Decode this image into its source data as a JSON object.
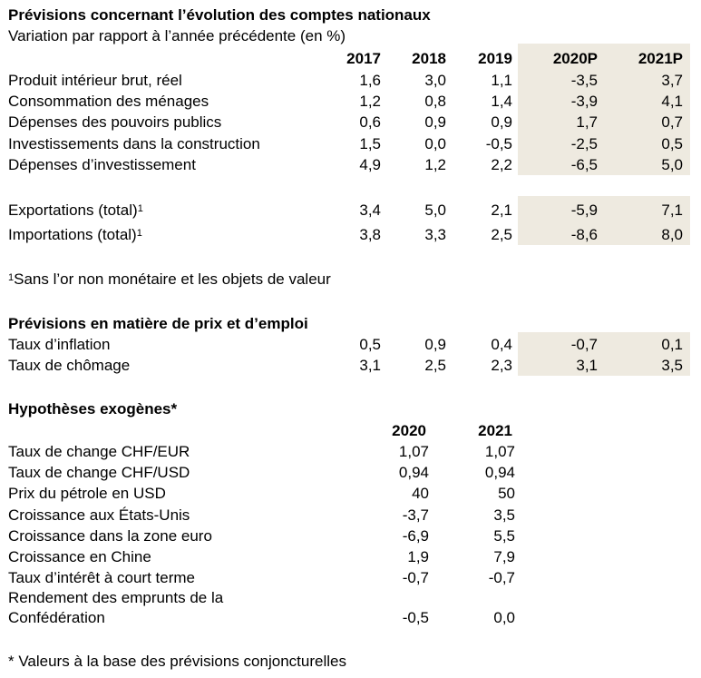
{
  "title": "Prévisions concernant l’évolution des comptes nationaux",
  "subtitle": "Variation par rapport à l’année précédente (en %)",
  "national_accounts": {
    "columns": [
      "2017",
      "2018",
      "2019",
      "2020P",
      "2021P"
    ],
    "rows": [
      {
        "label": "Produit intérieur brut, réel",
        "values": [
          "1,6",
          "3,0",
          "1,1",
          "-3,5",
          "3,7"
        ]
      },
      {
        "label": "Consommation des ménages",
        "values": [
          "1,2",
          "0,8",
          "1,4",
          "-3,9",
          "4,1"
        ]
      },
      {
        "label": "Dépenses des pouvoirs publics",
        "values": [
          "0,6",
          "0,9",
          "0,9",
          "1,7",
          "0,7"
        ]
      },
      {
        "label": "Investissements dans la construction",
        "values": [
          "1,5",
          "0,0",
          "-0,5",
          "-2,5",
          "0,5"
        ]
      },
      {
        "label": "Dépenses d’investissement",
        "values": [
          "4,9",
          "1,2",
          "2,2",
          "-6,5",
          "5,0"
        ]
      }
    ],
    "trade_rows": [
      {
        "label": "Exportations (total)",
        "sup": "1",
        "values": [
          "3,4",
          "5,0",
          "2,1",
          "-5,9",
          "7,1"
        ]
      },
      {
        "label": "Importations (total)",
        "sup": "1",
        "values": [
          "3,8",
          "3,3",
          "2,5",
          "-8,6",
          "8,0"
        ]
      }
    ],
    "footnote_sup": "1",
    "footnote": "Sans l’or non monétaire et les objets de valeur"
  },
  "prices_employment": {
    "title": "Prévisions en matière de prix et d’emploi",
    "rows": [
      {
        "label": "Taux d’inflation",
        "values": [
          "0,5",
          "0,9",
          "0,4",
          "-0,7",
          "0,1"
        ]
      },
      {
        "label": "Taux de chômage",
        "values": [
          "3,1",
          "2,5",
          "2,3",
          "3,1",
          "3,5"
        ]
      }
    ]
  },
  "exogenous": {
    "title": "Hypothèses exogènes*",
    "columns": [
      "2020",
      "2021"
    ],
    "rows": [
      {
        "label": "Taux de change CHF/EUR",
        "values": [
          "1,07",
          "1,07"
        ]
      },
      {
        "label": "Taux de change CHF/USD",
        "values": [
          "0,94",
          "0,94"
        ]
      },
      {
        "label": "Prix du pétrole en USD",
        "values": [
          "40",
          "50"
        ]
      },
      {
        "label": "Croissance aux États-Unis",
        "values": [
          "-3,7",
          "3,5"
        ]
      },
      {
        "label": "Croissance dans la zone euro",
        "values": [
          "-6,9",
          "5,5"
        ]
      },
      {
        "label": "Croissance en Chine",
        "values": [
          "1,9",
          "7,9"
        ]
      },
      {
        "label": "Taux d’intérêt à court terme",
        "values": [
          "-0,7",
          "-0,7"
        ]
      }
    ],
    "last_row": {
      "label_line1": "Rendement des emprunts de la",
      "label_line2": "Confédération",
      "values": [
        "-0,5",
        "0,0"
      ]
    },
    "footnote": "* Valeurs à la base des prévisions conjoncturelles"
  },
  "colors": {
    "forecast_shade": "#eeeae0"
  }
}
